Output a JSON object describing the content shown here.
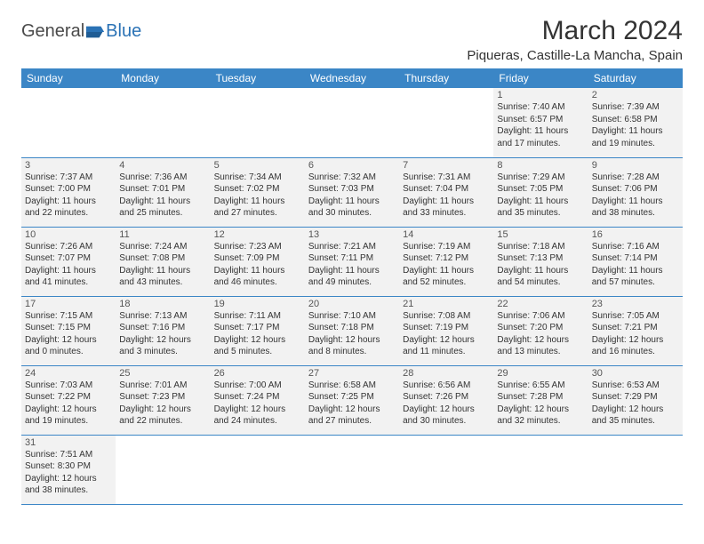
{
  "logo": {
    "text_a": "General",
    "text_b": "Blue"
  },
  "title": "March 2024",
  "location": "Piqueras, Castille-La Mancha, Spain",
  "columns": [
    "Sunday",
    "Monday",
    "Tuesday",
    "Wednesday",
    "Thursday",
    "Friday",
    "Saturday"
  ],
  "colors": {
    "header_bg": "#3b86c6",
    "header_fg": "#ffffff",
    "cell_bg": "#f2f2f2",
    "border": "#3b86c6"
  },
  "first_weekday": 5,
  "days": [
    {
      "n": 1,
      "sunrise": "7:40 AM",
      "sunset": "6:57 PM",
      "daylight": "11 hours and 17 minutes."
    },
    {
      "n": 2,
      "sunrise": "7:39 AM",
      "sunset": "6:58 PM",
      "daylight": "11 hours and 19 minutes."
    },
    {
      "n": 3,
      "sunrise": "7:37 AM",
      "sunset": "7:00 PM",
      "daylight": "11 hours and 22 minutes."
    },
    {
      "n": 4,
      "sunrise": "7:36 AM",
      "sunset": "7:01 PM",
      "daylight": "11 hours and 25 minutes."
    },
    {
      "n": 5,
      "sunrise": "7:34 AM",
      "sunset": "7:02 PM",
      "daylight": "11 hours and 27 minutes."
    },
    {
      "n": 6,
      "sunrise": "7:32 AM",
      "sunset": "7:03 PM",
      "daylight": "11 hours and 30 minutes."
    },
    {
      "n": 7,
      "sunrise": "7:31 AM",
      "sunset": "7:04 PM",
      "daylight": "11 hours and 33 minutes."
    },
    {
      "n": 8,
      "sunrise": "7:29 AM",
      "sunset": "7:05 PM",
      "daylight": "11 hours and 35 minutes."
    },
    {
      "n": 9,
      "sunrise": "7:28 AM",
      "sunset": "7:06 PM",
      "daylight": "11 hours and 38 minutes."
    },
    {
      "n": 10,
      "sunrise": "7:26 AM",
      "sunset": "7:07 PM",
      "daylight": "11 hours and 41 minutes."
    },
    {
      "n": 11,
      "sunrise": "7:24 AM",
      "sunset": "7:08 PM",
      "daylight": "11 hours and 43 minutes."
    },
    {
      "n": 12,
      "sunrise": "7:23 AM",
      "sunset": "7:09 PM",
      "daylight": "11 hours and 46 minutes."
    },
    {
      "n": 13,
      "sunrise": "7:21 AM",
      "sunset": "7:11 PM",
      "daylight": "11 hours and 49 minutes."
    },
    {
      "n": 14,
      "sunrise": "7:19 AM",
      "sunset": "7:12 PM",
      "daylight": "11 hours and 52 minutes."
    },
    {
      "n": 15,
      "sunrise": "7:18 AM",
      "sunset": "7:13 PM",
      "daylight": "11 hours and 54 minutes."
    },
    {
      "n": 16,
      "sunrise": "7:16 AM",
      "sunset": "7:14 PM",
      "daylight": "11 hours and 57 minutes."
    },
    {
      "n": 17,
      "sunrise": "7:15 AM",
      "sunset": "7:15 PM",
      "daylight": "12 hours and 0 minutes."
    },
    {
      "n": 18,
      "sunrise": "7:13 AM",
      "sunset": "7:16 PM",
      "daylight": "12 hours and 3 minutes."
    },
    {
      "n": 19,
      "sunrise": "7:11 AM",
      "sunset": "7:17 PM",
      "daylight": "12 hours and 5 minutes."
    },
    {
      "n": 20,
      "sunrise": "7:10 AM",
      "sunset": "7:18 PM",
      "daylight": "12 hours and 8 minutes."
    },
    {
      "n": 21,
      "sunrise": "7:08 AM",
      "sunset": "7:19 PM",
      "daylight": "12 hours and 11 minutes."
    },
    {
      "n": 22,
      "sunrise": "7:06 AM",
      "sunset": "7:20 PM",
      "daylight": "12 hours and 13 minutes."
    },
    {
      "n": 23,
      "sunrise": "7:05 AM",
      "sunset": "7:21 PM",
      "daylight": "12 hours and 16 minutes."
    },
    {
      "n": 24,
      "sunrise": "7:03 AM",
      "sunset": "7:22 PM",
      "daylight": "12 hours and 19 minutes."
    },
    {
      "n": 25,
      "sunrise": "7:01 AM",
      "sunset": "7:23 PM",
      "daylight": "12 hours and 22 minutes."
    },
    {
      "n": 26,
      "sunrise": "7:00 AM",
      "sunset": "7:24 PM",
      "daylight": "12 hours and 24 minutes."
    },
    {
      "n": 27,
      "sunrise": "6:58 AM",
      "sunset": "7:25 PM",
      "daylight": "12 hours and 27 minutes."
    },
    {
      "n": 28,
      "sunrise": "6:56 AM",
      "sunset": "7:26 PM",
      "daylight": "12 hours and 30 minutes."
    },
    {
      "n": 29,
      "sunrise": "6:55 AM",
      "sunset": "7:28 PM",
      "daylight": "12 hours and 32 minutes."
    },
    {
      "n": 30,
      "sunrise": "6:53 AM",
      "sunset": "7:29 PM",
      "daylight": "12 hours and 35 minutes."
    },
    {
      "n": 31,
      "sunrise": "7:51 AM",
      "sunset": "8:30 PM",
      "daylight": "12 hours and 38 minutes."
    }
  ],
  "labels": {
    "sunrise": "Sunrise:",
    "sunset": "Sunset:",
    "daylight": "Daylight:"
  }
}
